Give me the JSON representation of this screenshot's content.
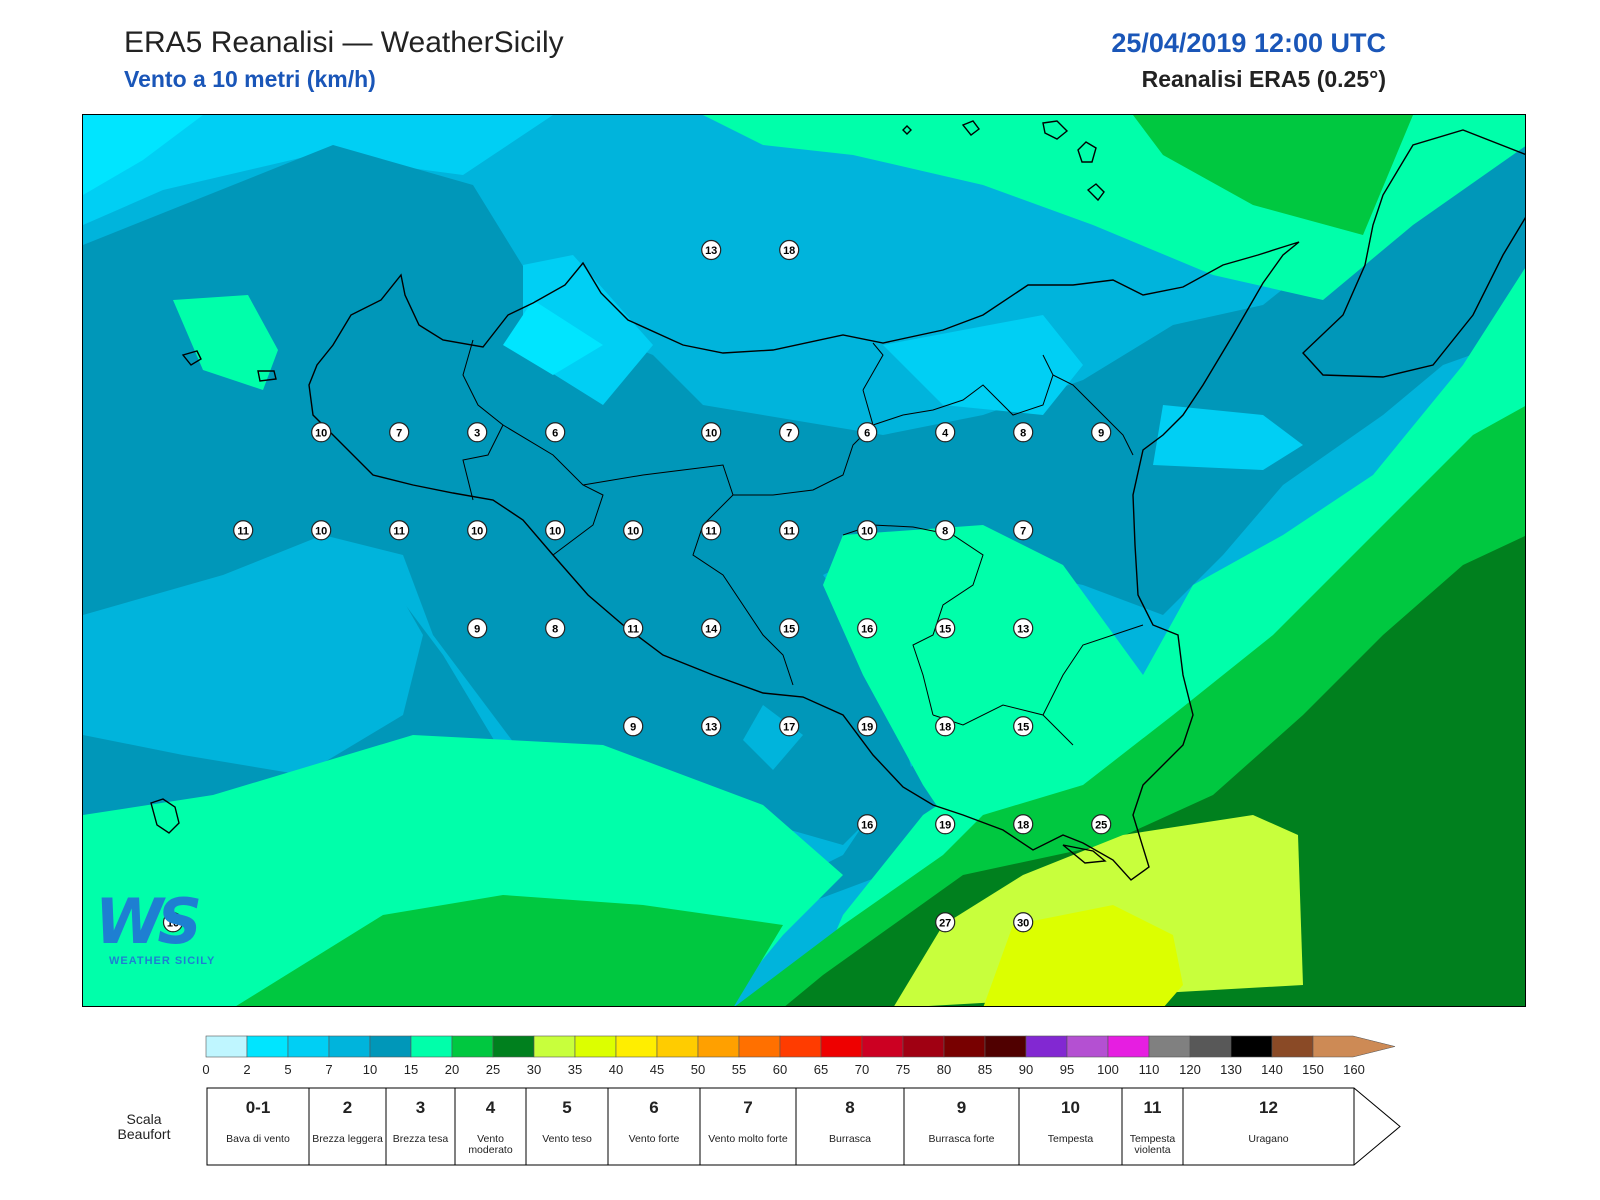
{
  "header": {
    "title_left": "ERA5 Reanalisi — WeatherSicily",
    "subtitle_left": "Vento a 10 metri (km/h)",
    "title_right": "25/04/2019 12:00 UTC",
    "subtitle_right": "Reanalisi ERA5 (0.25°)"
  },
  "logo": {
    "letters": "WS",
    "caption": "WEATHER SICILY"
  },
  "map": {
    "stations": [
      {
        "value": "13",
        "lon": 14.65,
        "lat": 39.08
      },
      {
        "value": "18",
        "lon": 15.15,
        "lat": 39.08
      },
      {
        "value": "10",
        "lon": 12.15,
        "lat": 38.15
      },
      {
        "value": "7",
        "lon": 12.65,
        "lat": 38.15
      },
      {
        "value": "3",
        "lon": 13.15,
        "lat": 38.15
      },
      {
        "value": "6",
        "lon": 13.65,
        "lat": 38.15
      },
      {
        "value": "10",
        "lon": 14.65,
        "lat": 38.15
      },
      {
        "value": "7",
        "lon": 15.15,
        "lat": 38.15
      },
      {
        "value": "6",
        "lon": 15.65,
        "lat": 38.15
      },
      {
        "value": "4",
        "lon": 16.15,
        "lat": 38.15
      },
      {
        "value": "8",
        "lon": 16.65,
        "lat": 38.15
      },
      {
        "value": "9",
        "lon": 17.15,
        "lat": 38.15
      },
      {
        "value": "11",
        "lon": 11.65,
        "lat": 37.65
      },
      {
        "value": "10",
        "lon": 12.15,
        "lat": 37.65
      },
      {
        "value": "11",
        "lon": 12.65,
        "lat": 37.65
      },
      {
        "value": "10",
        "lon": 13.15,
        "lat": 37.65
      },
      {
        "value": "10",
        "lon": 13.65,
        "lat": 37.65
      },
      {
        "value": "10",
        "lon": 14.15,
        "lat": 37.65
      },
      {
        "value": "11",
        "lon": 14.65,
        "lat": 37.65
      },
      {
        "value": "11",
        "lon": 15.15,
        "lat": 37.65
      },
      {
        "value": "10",
        "lon": 15.65,
        "lat": 37.65
      },
      {
        "value": "8",
        "lon": 16.15,
        "lat": 37.65
      },
      {
        "value": "7",
        "lon": 16.65,
        "lat": 37.65
      },
      {
        "value": "9",
        "lon": 13.15,
        "lat": 37.15
      },
      {
        "value": "8",
        "lon": 13.65,
        "lat": 37.15
      },
      {
        "value": "11",
        "lon": 14.15,
        "lat": 37.15
      },
      {
        "value": "14",
        "lon": 14.65,
        "lat": 37.15
      },
      {
        "value": "15",
        "lon": 15.15,
        "lat": 37.15
      },
      {
        "value": "16",
        "lon": 15.65,
        "lat": 37.15
      },
      {
        "value": "15",
        "lon": 16.15,
        "lat": 37.15
      },
      {
        "value": "13",
        "lon": 16.65,
        "lat": 37.15
      },
      {
        "value": "9",
        "lon": 14.15,
        "lat": 36.65
      },
      {
        "value": "13",
        "lon": 14.65,
        "lat": 36.65
      },
      {
        "value": "17",
        "lon": 15.15,
        "lat": 36.65
      },
      {
        "value": "19",
        "lon": 15.65,
        "lat": 36.65
      },
      {
        "value": "18",
        "lon": 16.15,
        "lat": 36.65
      },
      {
        "value": "15",
        "lon": 16.65,
        "lat": 36.65
      },
      {
        "value": "16",
        "lon": 15.65,
        "lat": 36.15
      },
      {
        "value": "19",
        "lon": 16.15,
        "lat": 36.15
      },
      {
        "value": "18",
        "lon": 16.65,
        "lat": 36.15
      },
      {
        "value": "25",
        "lon": 17.15,
        "lat": 36.15
      },
      {
        "value": "10",
        "lon": 11.2,
        "lat": 35.65
      },
      {
        "value": "27",
        "lon": 16.15,
        "lat": 35.65
      },
      {
        "value": "30",
        "lon": 16.65,
        "lat": 35.65
      }
    ]
  },
  "colorbar": {
    "ticks": [
      "0",
      "2",
      "5",
      "7",
      "10",
      "15",
      "20",
      "25",
      "30",
      "35",
      "40",
      "45",
      "50",
      "55",
      "60",
      "65",
      "70",
      "75",
      "80",
      "85",
      "90",
      "95",
      "100",
      "110",
      "120",
      "130",
      "140",
      "150",
      "160"
    ],
    "colors": [
      "#bff6ff",
      "#00e5ff",
      "#00cff4",
      "#00b4dc",
      "#0097b9",
      "#00ffaa",
      "#00c840",
      "#00801e",
      "#c8ff3c",
      "#dcff00",
      "#ffee00",
      "#ffcc00",
      "#ffa000",
      "#ff7000",
      "#ff3c00",
      "#ee0000",
      "#cc0022",
      "#a00012",
      "#780000",
      "#500000",
      "#8228d2",
      "#b450d2",
      "#e61ee1",
      "#808080",
      "#585858",
      "#000000",
      "#8a4a26",
      "#cd8a55"
    ]
  },
  "beaufort": {
    "label": "Scala Beaufort",
    "classes": [
      {
        "number": "0-1",
        "name": "Bava di vento"
      },
      {
        "number": "2",
        "name": "Brezza leggera"
      },
      {
        "number": "3",
        "name": "Brezza tesa"
      },
      {
        "number": "4",
        "name": "Vento moderato"
      },
      {
        "number": "5",
        "name": "Vento teso"
      },
      {
        "number": "6",
        "name": "Vento forte"
      },
      {
        "number": "7",
        "name": "Vento molto forte"
      },
      {
        "number": "8",
        "name": "Burrasca"
      },
      {
        "number": "9",
        "name": "Burrasca forte"
      },
      {
        "number": "10",
        "name": "Tempesta"
      },
      {
        "number": "11",
        "name": "Tempesta violenta"
      },
      {
        "number": "12",
        "name": "Uragano"
      }
    ]
  }
}
